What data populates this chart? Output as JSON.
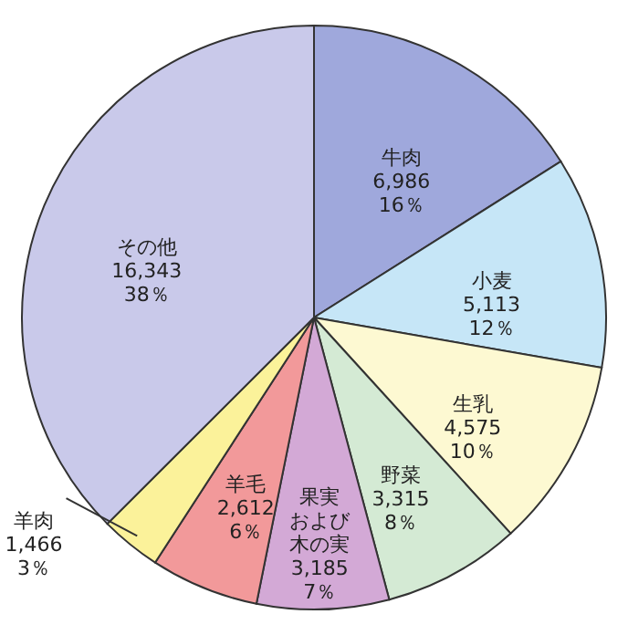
{
  "chart_data": {
    "type": "pie",
    "categories": [
      "牛肉",
      "小麦",
      "生乳",
      "野菜",
      "果実および木の実",
      "羊毛",
      "羊肉",
      "その他"
    ],
    "values": [
      6986,
      5113,
      4575,
      3315,
      3185,
      2612,
      1466,
      16343
    ],
    "value_labels": [
      "6,986\n16％",
      "5,113\n12％",
      "4,575\n10％",
      "3,315\n8％",
      "3,185\n7％",
      "2,612\n6％",
      "1,466\n3％",
      "16,343\n38％"
    ],
    "colors": [
      "#9fa8dc",
      "#c6e6f7",
      "#fdf9d2",
      "#d4ead4",
      "#d3a9d6",
      "#f2999a",
      "#fbf29a",
      "#c9c9ea"
    ]
  }
}
